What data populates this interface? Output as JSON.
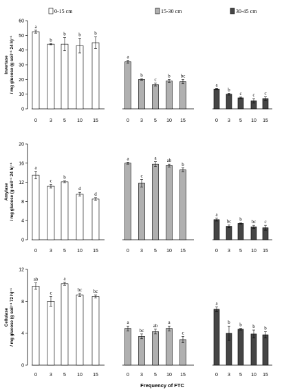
{
  "legend": {
    "items": [
      {
        "label": "0-15 cm",
        "color": "#ffffff"
      },
      {
        "label": "15-30 cm",
        "color": "#b0b0b0"
      },
      {
        "label": "30-45 cm",
        "color": "#454545"
      }
    ]
  },
  "xlabel": "Frequency of FTC",
  "chart_data": [
    {
      "type": "bar",
      "title": "",
      "ylabel_lines": [
        "Invertase",
        "/ mg glucose (g soil⁻¹ 24 h)⁻¹"
      ],
      "ylim": [
        0,
        60
      ],
      "yticks": [
        0,
        10,
        20,
        30,
        40,
        50,
        60
      ],
      "categories": [
        "0",
        "3",
        "5",
        "10",
        "15"
      ],
      "series": [
        {
          "name": "0-15 cm",
          "values": [
            52.5,
            44,
            44,
            43,
            45
          ],
          "errors": [
            1,
            0.4,
            4.5,
            5,
            4
          ],
          "letters": [
            "a",
            "b",
            "b",
            "b",
            "b"
          ]
        },
        {
          "name": "15-30 cm",
          "values": [
            32,
            20,
            16.5,
            19,
            18.5
          ],
          "errors": [
            1,
            0.5,
            1,
            1,
            1.5
          ],
          "letters": [
            "a",
            "b",
            "c",
            "b",
            "bc"
          ]
        },
        {
          "name": "30-45 cm",
          "values": [
            13.5,
            10,
            7.5,
            5.5,
            7
          ],
          "errors": [
            0.4,
            0.6,
            0.5,
            1.5,
            1.2
          ],
          "letters": [
            "a",
            "b",
            "c",
            "c",
            "c"
          ]
        }
      ]
    },
    {
      "type": "bar",
      "title": "",
      "ylabel_lines": [
        "Amylase",
        "/ mg glucose (g soil⁻¹ 24 h)⁻¹"
      ],
      "ylim": [
        0,
        20
      ],
      "yticks": [
        0,
        4,
        8,
        12,
        16,
        20
      ],
      "categories": [
        "0",
        "3",
        "5",
        "10",
        "15"
      ],
      "series": [
        {
          "name": "0-15 cm",
          "values": [
            13.5,
            11.2,
            12.1,
            9.5,
            8.5
          ],
          "errors": [
            0.8,
            0.4,
            0.2,
            0.4,
            0.3
          ],
          "letters": [
            "a",
            "c",
            "b",
            "d",
            "d"
          ]
        },
        {
          "name": "15-30 cm",
          "values": [
            16,
            11.8,
            15.8,
            15.5,
            14.6
          ],
          "errors": [
            0.2,
            0.8,
            0.5,
            0.3,
            0.4
          ],
          "letters": [
            "a",
            "c",
            "a",
            "ab",
            "b"
          ]
        },
        {
          "name": "30-45 cm",
          "values": [
            4.2,
            2.8,
            3.4,
            2.7,
            2.5
          ],
          "errors": [
            0.3,
            0.3,
            0.1,
            0.3,
            0.5
          ],
          "letters": [
            "a",
            "bc",
            "b",
            "bc",
            "c"
          ]
        }
      ]
    },
    {
      "type": "bar",
      "title": "",
      "ylabel_lines": [
        "Cellulase",
        "/ mg glucose (g soil⁻¹ 72 h)⁻¹"
      ],
      "ylim": [
        0,
        12
      ],
      "yticks": [
        0,
        4,
        8,
        12
      ],
      "categories": [
        "0",
        "3",
        "5",
        "10",
        "15"
      ],
      "series": [
        {
          "name": "0-15 cm",
          "values": [
            9.9,
            8,
            10.2,
            8.8,
            8.6
          ],
          "errors": [
            0.4,
            0.6,
            0.2,
            0.2,
            0.2
          ],
          "letters": [
            "ab",
            "c",
            "a",
            "bc",
            "bc"
          ]
        },
        {
          "name": "15-30 cm",
          "values": [
            4.6,
            3.6,
            4.2,
            4.6,
            3.2
          ],
          "errors": [
            0.3,
            0.3,
            0.3,
            0.3,
            0.4
          ],
          "letters": [
            "a",
            "bc",
            "ab",
            "a",
            "c"
          ]
        },
        {
          "name": "30-45 cm",
          "values": [
            7,
            4,
            4.5,
            3.9,
            3.8
          ],
          "errors": [
            0.3,
            0.9,
            0.1,
            0.5,
            0.4
          ],
          "letters": [
            "a",
            "b",
            "b",
            "b",
            "b"
          ]
        }
      ]
    }
  ]
}
